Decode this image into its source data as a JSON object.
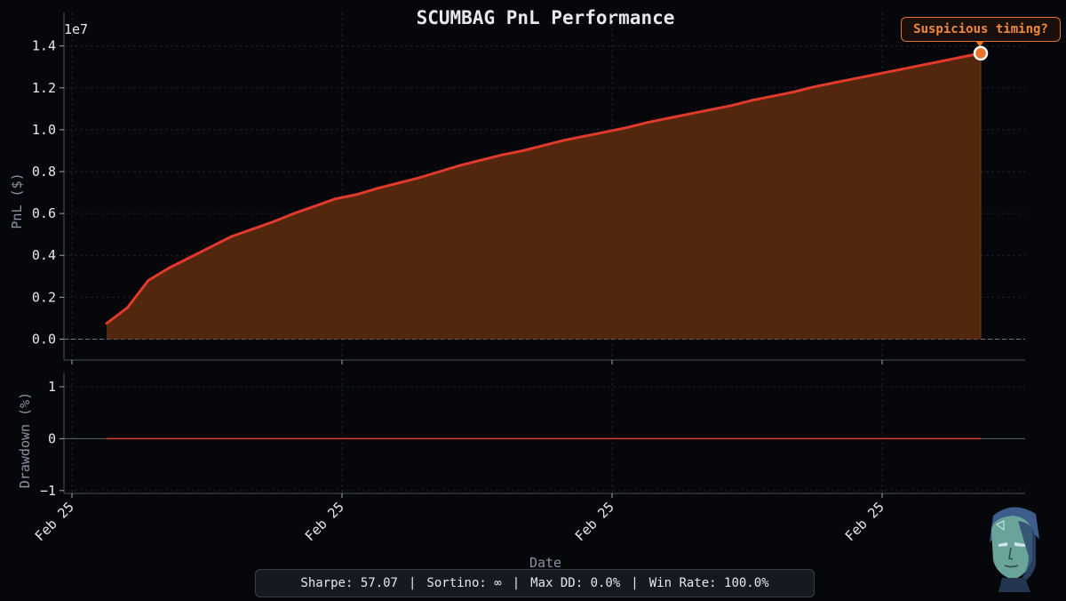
{
  "chart_data": [
    {
      "type": "area",
      "title": "SCUMBAG PnL Performance",
      "ylabel": "PnL ($)",
      "y_offset_label": "1e7",
      "yticks": [
        0.0,
        0.2,
        0.4,
        0.6,
        0.8,
        1.0,
        1.2,
        1.4
      ],
      "ytick_labels": [
        "0.0",
        "0.2",
        "0.4",
        "0.6",
        "0.8",
        "1.0",
        "1.2",
        "1.4"
      ],
      "ylim": [
        -0.1,
        1.56
      ],
      "grid": true,
      "zero_line": true,
      "series": [
        {
          "color": "#e03a2c",
          "fill_color": "#5a2a0f",
          "values": [
            0.075,
            0.15,
            0.28,
            0.34,
            0.39,
            0.44,
            0.49,
            0.525,
            0.56,
            0.6,
            0.635,
            0.67,
            0.69,
            0.72,
            0.745,
            0.77,
            0.8,
            0.83,
            0.855,
            0.88,
            0.9,
            0.925,
            0.95,
            0.97,
            0.99,
            1.01,
            1.035,
            1.055,
            1.075,
            1.095,
            1.115,
            1.14,
            1.16,
            1.18,
            1.205,
            1.225,
            1.245,
            1.265,
            1.285,
            1.305,
            1.325,
            1.345,
            1.365
          ]
        }
      ],
      "annotation": {
        "text": "Suspicious timing?",
        "color": "#e8742c",
        "target_index": 42
      }
    },
    {
      "type": "line",
      "ylabel": "Drawdown (%)",
      "xlabel": "Date",
      "yticks": [
        -1,
        0,
        1
      ],
      "ytick_labels": [
        "−1",
        "0",
        "1"
      ],
      "ylim": [
        -1,
        1
      ],
      "x_tick_labels": [
        "Feb 25",
        "Feb 25",
        "Feb 25",
        "Feb 25"
      ],
      "series": [
        {
          "color": "#e03a2c",
          "values": [
            0,
            0
          ]
        }
      ]
    }
  ],
  "stats": {
    "sharpe": "Sharpe: 57.07",
    "sortino": "Sortino: ∞",
    "max_dd": "Max DD: 0.0%",
    "win_rate": "Win Rate: 100.0%",
    "separator": "|"
  },
  "colors": {
    "background": "#06070a",
    "text": "#e6e8ec",
    "axis_label": "#8a93a3",
    "grid": "#1c2128",
    "pnl_line": "#e03a2c",
    "pnl_fill": "#5a2a0f",
    "annotation": "#e8742c"
  }
}
